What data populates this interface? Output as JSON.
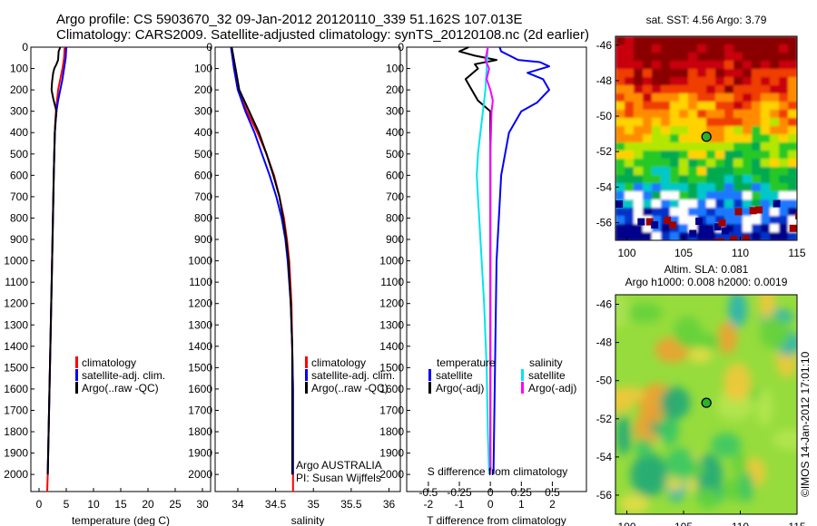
{
  "header": {
    "line1": "Argo profile: CS 5903670_32 09-Jan-2012 20120110_339 51.162S 107.013E",
    "line2": "Climatology: CARS2009. Satellite-adjusted climatology: synTS_20120108.nc (2d earlier)"
  },
  "colors": {
    "climatology": "#ff0000",
    "satellite": "#0000ff",
    "argo": "#000000",
    "sal_satellite": "#00e5ee",
    "sal_argo": "#ff00ff"
  },
  "depth_axis": {
    "ticks": [
      "0",
      "100",
      "200",
      "300",
      "400",
      "500",
      "600",
      "700",
      "800",
      "900",
      "1000",
      "1100",
      "1200",
      "1300",
      "1400",
      "1500",
      "1600",
      "1700",
      "1800",
      "1900",
      "2000"
    ]
  },
  "chart_data": [
    {
      "type": "line",
      "name": "temperature-profile",
      "xlabel": "temperature (deg C)",
      "xlim": [
        -1.5,
        31.5
      ],
      "ylim": [
        0,
        2080
      ],
      "xticks": [
        0,
        5,
        10,
        15,
        20,
        25,
        30
      ],
      "xtick_labels": [
        "0",
        "5",
        "10",
        "15",
        "20",
        "25",
        "30"
      ],
      "legend": [
        "climatology",
        "satellite-adj. clim.",
        "Argo(..raw -QC)"
      ],
      "series": [
        {
          "name": "climatology",
          "color": "#ff0000",
          "depth": [
            0,
            50,
            100,
            150,
            200,
            300,
            400,
            600,
            750,
            1000,
            1500,
            2000,
            2080
          ],
          "values": [
            4.7,
            4.6,
            4.3,
            3.9,
            3.5,
            3.1,
            2.9,
            2.7,
            2.6,
            2.4,
            2.0,
            1.6,
            1.5
          ]
        },
        {
          "name": "satellite-adj. clim.",
          "color": "#0000ff",
          "depth": [
            0,
            50,
            100,
            150,
            200,
            250,
            300,
            400,
            600,
            1000,
            1500,
            2000
          ],
          "values": [
            5.0,
            4.9,
            4.6,
            4.3,
            3.9,
            3.5,
            3.2,
            2.9,
            2.7,
            2.4,
            2.0,
            1.6
          ]
        },
        {
          "name": "Argo(..raw -QC)",
          "color": "#000000",
          "depth": [
            0,
            20,
            60,
            80,
            100,
            120,
            160,
            200,
            240,
            280,
            300,
            350,
            400,
            600,
            1000,
            1500,
            2000
          ],
          "values": [
            3.9,
            3.6,
            3.5,
            3.2,
            2.8,
            2.6,
            2.4,
            2.3,
            2.6,
            3.0,
            3.2,
            3.0,
            2.9,
            2.7,
            2.4,
            2.0,
            1.6
          ]
        }
      ]
    },
    {
      "type": "line",
      "name": "salinity-profile",
      "xlabel": "salinity",
      "xlim": [
        33.7,
        36.15
      ],
      "ylim": [
        0,
        2080
      ],
      "xticks": [
        34,
        34.5,
        35,
        35.5,
        36
      ],
      "xtick_labels": [
        "34",
        "34.5",
        "35",
        "35.5",
        "36"
      ],
      "legend": [
        "climatology",
        "satellite-adj. clim.",
        "Argo(..raw -QC)"
      ],
      "note_lines": [
        "Argo AUSTRALIA",
        "PI: Susan Wijffels"
      ],
      "series": [
        {
          "name": "climatology",
          "color": "#ff0000",
          "depth": [
            0,
            100,
            200,
            300,
            400,
            500,
            600,
            700,
            800,
            900,
            1000,
            1200,
            1400,
            1600,
            1800,
            2000,
            2080
          ],
          "values": [
            33.91,
            33.95,
            34.0,
            34.12,
            34.26,
            34.38,
            34.48,
            34.55,
            34.61,
            34.65,
            34.68,
            34.71,
            34.72,
            34.73,
            34.73,
            34.73,
            34.73
          ]
        },
        {
          "name": "satellite-adj. clim.",
          "color": "#0000ff",
          "depth": [
            0,
            100,
            200,
            300,
            400,
            500,
            600,
            700,
            800,
            900,
            1000,
            1200,
            1400,
            1600,
            1800,
            2000
          ],
          "values": [
            33.91,
            33.95,
            34.0,
            34.1,
            34.22,
            34.32,
            34.42,
            34.51,
            34.58,
            34.63,
            34.66,
            34.7,
            34.72,
            34.73,
            34.73,
            34.73
          ]
        },
        {
          "name": "Argo(..raw -QC)",
          "color": "#000000",
          "depth": [
            0,
            100,
            200,
            300,
            400,
            500,
            600,
            700,
            800,
            900,
            1000,
            1200,
            1400,
            1600,
            1800,
            2000
          ],
          "values": [
            33.92,
            33.97,
            34.02,
            34.15,
            34.28,
            34.38,
            34.47,
            34.55,
            34.6,
            34.64,
            34.67,
            34.7,
            34.72,
            34.72,
            34.72,
            34.72
          ]
        }
      ]
    },
    {
      "type": "line",
      "name": "difference-profile",
      "xlabel": "T difference from climatology",
      "x2label": "S difference from climatology",
      "xlim": [
        -2.7,
        3.1
      ],
      "ylim": [
        0,
        2080
      ],
      "xticks": [
        -2,
        -1,
        0,
        1,
        2
      ],
      "xtick_labels": [
        "-2",
        "-1",
        "0",
        "1",
        "2"
      ],
      "s_ticks": [
        -0.5,
        -0.25,
        0,
        0.25,
        0.5
      ],
      "s_tick_labels": [
        "-0.5",
        "-0.25",
        "0",
        "0.25",
        "0.5"
      ],
      "s_scale": 0.25,
      "legend_headers": [
        "temperature",
        "salinity"
      ],
      "legend_temperature": [
        "satellite",
        "Argo(-adj)"
      ],
      "legend_salinity": [
        "satellite",
        "Argo(-adj)"
      ],
      "series": [
        {
          "name": "T satellite",
          "color": "#0000ff",
          "depth": [
            0,
            20,
            60,
            70,
            90,
            120,
            150,
            200,
            260,
            300,
            400,
            600,
            1000,
            1500,
            2000
          ],
          "values": [
            0.3,
            0.35,
            0.9,
            1.6,
            1.9,
            1.2,
            1.7,
            1.9,
            1.5,
            1.0,
            0.6,
            0.35,
            0.2,
            0.15,
            0.1
          ]
        },
        {
          "name": "T Argo(-adj)",
          "color": "#000000",
          "depth": [
            0,
            20,
            40,
            60,
            80,
            100,
            150,
            200,
            250,
            300,
            400,
            600,
            1000,
            1500,
            2000
          ],
          "values": [
            -0.7,
            -1.0,
            -0.5,
            0.2,
            -0.5,
            -0.4,
            -0.8,
            -0.6,
            -0.4,
            0.0,
            0.0,
            0.0,
            0.0,
            0.0,
            0.0
          ]
        },
        {
          "name": "S satellite",
          "color": "#00e5ee",
          "depth": [
            0,
            100,
            200,
            300,
            400,
            500,
            600,
            700,
            800,
            1000,
            1200,
            1500,
            1800,
            2000
          ],
          "values": [
            -0.02,
            -0.03,
            -0.04,
            -0.06,
            -0.08,
            -0.1,
            -0.11,
            -0.1,
            -0.09,
            -0.07,
            -0.05,
            -0.03,
            -0.02,
            -0.01
          ]
        },
        {
          "name": "S Argo(-adj)",
          "color": "#ff00ff",
          "depth": [
            0,
            60,
            100,
            150,
            200,
            250,
            300,
            500,
            700,
            1000,
            1500,
            2000
          ],
          "values": [
            -0.02,
            -0.04,
            -0.01,
            -0.03,
            0.0,
            0.02,
            0.01,
            0.0,
            0.0,
            0.0,
            0.0,
            0.0
          ]
        }
      ]
    },
    {
      "type": "heatmap",
      "name": "sst-map",
      "title": "sat. SST: 4.56 Argo: 3.79",
      "xlim": [
        99,
        115
      ],
      "ylim": [
        -57,
        -45.5
      ],
      "xticks": [
        100,
        105,
        110,
        115
      ],
      "yticks": [
        -46,
        -48,
        -50,
        -52,
        -54,
        -56
      ],
      "marker": {
        "lon": 107.013,
        "lat": -51.162
      }
    },
    {
      "type": "heatmap",
      "name": "sla-map",
      "title_lines": [
        "Altim. SLA: 0.081",
        "Argo h1000: 0.008 h2000: 0.0019"
      ],
      "xlim": [
        99,
        115
      ],
      "ylim": [
        -57,
        -45.5
      ],
      "xticks": [
        100,
        105,
        110,
        115
      ],
      "yticks": [
        -46,
        -48,
        -50,
        -52,
        -54,
        -56
      ],
      "marker": {
        "lon": 107.013,
        "lat": -51.162
      },
      "side_label": "©IMOS 14-Jan-2012 17:01:10"
    }
  ]
}
